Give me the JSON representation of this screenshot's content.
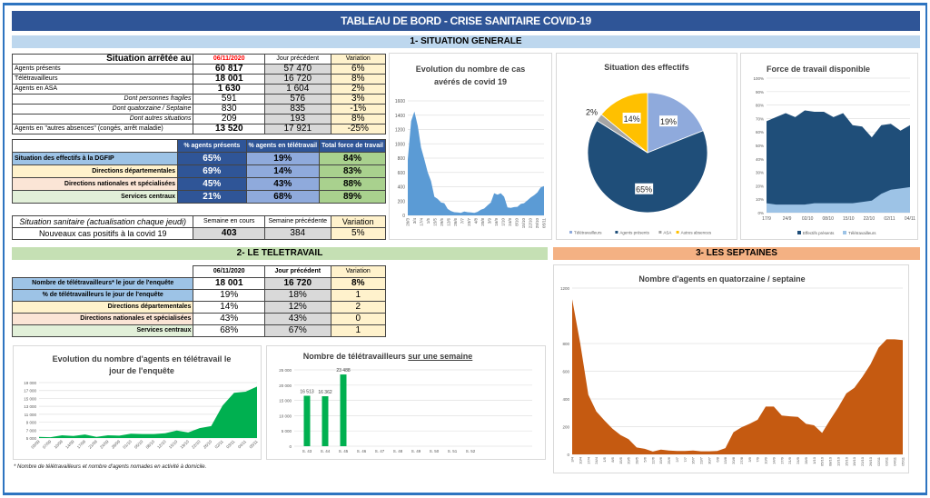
{
  "header": {
    "title": "TABLEAU DE BORD - CRISE SANITAIRE COVID-19"
  },
  "sections": {
    "s1": "1- SITUATION GENERALE",
    "s2": "2- LE TELETRAVAIL",
    "s3": "3- LES SEPTAINES"
  },
  "situation": {
    "header": {
      "label": "Situation arrêtée au",
      "date": "06/11/2020",
      "prev": "Jour précédent",
      "var": "Variation"
    },
    "rows": [
      {
        "label": "Agents présents",
        "cur": "60 817",
        "prev": "57 470",
        "var": "6%",
        "style": "b"
      },
      {
        "label": "Télétravailleurs",
        "cur": "18 001",
        "prev": "16 720",
        "var": "8%",
        "style": "b"
      },
      {
        "label": "Agents en ASA",
        "cur": "1 630",
        "prev": "1 604",
        "var": "2%",
        "style": "b"
      },
      {
        "label": "Dont personnes fragiles",
        "cur": "591",
        "prev": "576",
        "var": "3%",
        "style": "i"
      },
      {
        "label": "Dont quatorzaine / Septaine",
        "cur": "830",
        "prev": "835",
        "var": "-1%",
        "style": "i"
      },
      {
        "label": "Dont autres situations",
        "cur": "209",
        "prev": "193",
        "var": "8%",
        "style": "i"
      },
      {
        "label": "Agents en \"autres absences\" (congés, arrêt maladie)",
        "cur": "13 520",
        "prev": "17 921",
        "var": "-25%",
        "style": "b"
      }
    ]
  },
  "effectifs": {
    "headers": [
      "% agents présents",
      "% agents en télétravail",
      "Total force de travail"
    ],
    "rows": [
      {
        "label": "Situation des effectifs à la DGFIP",
        "present": "65%",
        "tele": "19%",
        "total": "84%",
        "bg": "lblue"
      },
      {
        "label": "Directions départementales",
        "present": "69%",
        "tele": "14%",
        "total": "83%",
        "bg": "lyellow"
      },
      {
        "label": "Directions nationales et spécialisées",
        "present": "45%",
        "tele": "43%",
        "total": "88%",
        "bg": "lpink"
      },
      {
        "label": "Services centraux",
        "present": "21%",
        "tele": "68%",
        "total": "89%",
        "bg": "lgreen"
      }
    ]
  },
  "sanitaire": {
    "label": "Situation sanitaire (actualisation chaque jeudi)",
    "col_cur": "Semaine en cours",
    "col_prev": "Semaine précédente",
    "col_var": "Variation",
    "row_label": "Nouveaux cas positifs à la covid 19",
    "cur": "403",
    "prev": "384",
    "var": "5%"
  },
  "teletravail": {
    "header": {
      "date": "06/11/2020",
      "prev": "Jour précédent",
      "var": "Variation"
    },
    "rows": [
      {
        "label": "Nombre de télétravailleurs* le jour de l'enquête",
        "cur": "18 001",
        "prev": "16 720",
        "var": "8%",
        "bg": "lblue",
        "bold": true
      },
      {
        "label": "% de télétravailleurs le jour de l'enquête",
        "cur": "19%",
        "prev": "18%",
        "var": "1",
        "bg": "lblue",
        "bold": false
      },
      {
        "label": "Directions départementales",
        "cur": "14%",
        "prev": "12%",
        "var": "2",
        "bg": "lyellow",
        "bold": false
      },
      {
        "label": "Directions nationales et spécialisées",
        "cur": "43%",
        "prev": "43%",
        "var": "0",
        "bg": "lpink",
        "bold": false
      },
      {
        "label": "Services centraux",
        "cur": "68%",
        "prev": "67%",
        "var": "1",
        "bg": "lgreen",
        "bold": false
      }
    ]
  },
  "footnote": "* Nombre de télétravailleurs et nombre d'agents nomades en activité à domicile.",
  "chart_data": [
    {
      "id": "cas",
      "type": "area",
      "title": "Evolution du nombre de cas avérés de covid 19",
      "ylim": [
        0,
        1600
      ],
      "yticks": [
        0,
        200,
        400,
        600,
        800,
        1000,
        1200,
        1400,
        1600
      ],
      "color": "#5b9bd5",
      "xlabels": [
        "20/3",
        "3/4",
        "17/4",
        "1/5",
        "15/5",
        "29/5",
        "12/6",
        "26/6",
        "7/7",
        "23/7",
        "4/8",
        "20/8",
        "3/9",
        "16/9",
        "1/10",
        "24/9",
        "8/10",
        "15/10",
        "22/10",
        "29/10",
        "05/11"
      ],
      "values": [
        780,
        1320,
        1450,
        1250,
        950,
        780,
        600,
        480,
        260,
        230,
        180,
        170,
        90,
        60,
        45,
        40,
        35,
        55,
        45,
        40,
        35,
        50,
        80,
        95,
        140,
        180,
        310,
        290,
        310,
        260,
        110,
        105,
        115,
        120,
        160,
        170,
        210,
        250,
        280,
        320,
        390,
        410
      ]
    },
    {
      "id": "pie",
      "type": "pie",
      "title": "Situation des effectifs",
      "labels": [
        "Télétravailleurs",
        "Agents présents",
        "ASA",
        "Autres absences"
      ],
      "values": [
        19,
        65,
        2,
        14
      ],
      "colors": [
        "#8faadc",
        "#1f4e79",
        "#a5a5a5",
        "#ffc000"
      ]
    },
    {
      "id": "force",
      "type": "area",
      "title": "Force de travail disponible",
      "ylim": [
        0,
        100
      ],
      "yticks": [
        "0%",
        "10%",
        "20%",
        "30%",
        "40%",
        "50%",
        "60%",
        "70%",
        "80%",
        "90%",
        "100%"
      ],
      "xlabels": [
        "17/9",
        "24/9",
        "02/10",
        "08/10",
        "15/10",
        "22/10",
        "02/11",
        "04/11"
      ],
      "series": [
        {
          "name": "Effectifs présents",
          "color": "#1f4e79",
          "values": [
            68,
            71,
            74,
            71,
            76,
            75,
            75,
            71,
            74,
            65,
            64,
            56,
            65,
            66,
            61,
            65
          ]
        },
        {
          "name": "Télétravailleurs",
          "color": "#9dc3e6",
          "values": [
            7,
            6,
            6,
            6,
            6,
            7,
            7,
            7,
            7,
            7,
            8,
            9,
            14,
            17,
            18,
            19
          ]
        }
      ]
    },
    {
      "id": "teleevo",
      "type": "area",
      "title": "Evolution du nombre d'agents en télétravail le jour de l'enquête",
      "ylim": [
        5000,
        19000
      ],
      "yticks": [
        "5 000",
        "7 000",
        "9 000",
        "11 000",
        "13 000",
        "15 000",
        "17 000",
        "19 000"
      ],
      "color": "#00b050",
      "xlabels": [
        "03/09",
        "07/09",
        "10/09",
        "14/09",
        "17/09",
        "21/09",
        "24/09",
        "28/09",
        "01/10",
        "05/10",
        "08/10",
        "12/10",
        "15/10",
        "19/10",
        "22/10",
        "26/10",
        "02/11",
        "03/11",
        "04/11",
        "05/11"
      ],
      "values": [
        5300,
        5200,
        5700,
        5500,
        5900,
        5300,
        5700,
        5600,
        6100,
        6000,
        6000,
        6200,
        6900,
        6400,
        7500,
        8000,
        13200,
        16400,
        16700,
        18000
      ]
    },
    {
      "id": "semaine",
      "type": "bar",
      "title": "Nombre de télétravailleurs",
      "title_underlined": "sur une semaine",
      "ylim": [
        0,
        25000
      ],
      "yticks": [
        "0",
        "5 000",
        "10 000",
        "15 000",
        "20 000",
        "25 000"
      ],
      "color": "#00b050",
      "categories": [
        "S. 43",
        "S. 44",
        "S. 45",
        "S. 46",
        "S. 47",
        "S. 48",
        "S. 49",
        "S. 50",
        "S. 51",
        "S. 52"
      ],
      "values": [
        16513,
        16362,
        23488,
        null,
        null,
        null,
        null,
        null,
        null,
        null
      ],
      "labels": [
        "16 513",
        "16 362",
        "23 488",
        "",
        "",
        "",
        "",
        "",
        "",
        ""
      ]
    },
    {
      "id": "septaine",
      "type": "area",
      "title": "Nombre d'agents en quatorzaine / septaine",
      "ylim": [
        0,
        1200
      ],
      "yticks": [
        0,
        200,
        400,
        600,
        800,
        1200
      ],
      "color": "#c55a11",
      "xlabels": [
        "3/4",
        "10/4",
        "17/4",
        "24/4",
        "1/5",
        "8/5",
        "15/5",
        "20/5",
        "28/5",
        "5/6",
        "12/6",
        "19/6",
        "25/6",
        "2/7",
        "7/7",
        "16/7",
        "23/7",
        "30/7",
        "6/8",
        "13/8",
        "20/8",
        "27/8",
        "3/9",
        "7/9",
        "10/9",
        "14/9",
        "17/9",
        "21/9",
        "24/9",
        "28/9",
        "1/10",
        "05/10",
        "08/10",
        "12/10",
        "15/10",
        "19/10",
        "22/10",
        "26/10",
        "02/11",
        "03/11",
        "04/11",
        "05/11"
      ],
      "values": [
        1120,
        800,
        430,
        310,
        245,
        185,
        140,
        110,
        50,
        40,
        20,
        35,
        28,
        25,
        24,
        28,
        22,
        22,
        25,
        45,
        160,
        195,
        220,
        250,
        345,
        345,
        280,
        275,
        270,
        220,
        210,
        155,
        250,
        340,
        440,
        480,
        560,
        650,
        770,
        830,
        830,
        825
      ]
    }
  ]
}
